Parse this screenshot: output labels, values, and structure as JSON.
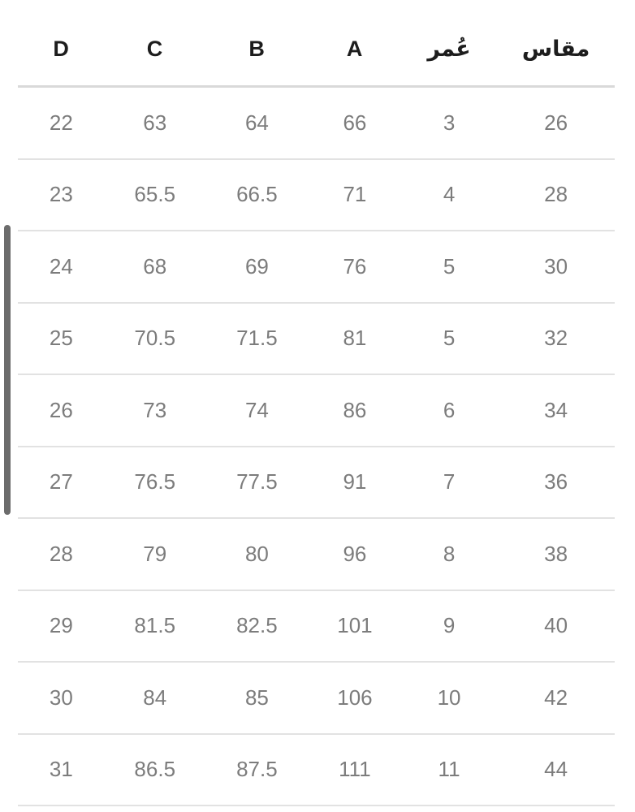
{
  "table": {
    "columns": [
      {
        "key": "size",
        "label": "مقاس"
      },
      {
        "key": "age",
        "label": "عُمر"
      },
      {
        "key": "a",
        "label": "A"
      },
      {
        "key": "b",
        "label": "B"
      },
      {
        "key": "c",
        "label": "C"
      },
      {
        "key": "d",
        "label": "D"
      }
    ],
    "rows": [
      [
        "26",
        "3",
        "66",
        "64",
        "63",
        "22"
      ],
      [
        "28",
        "4",
        "71",
        "66.5",
        "65.5",
        "23"
      ],
      [
        "30",
        "5",
        "76",
        "69",
        "68",
        "24"
      ],
      [
        "32",
        "5",
        "81",
        "71.5",
        "70.5",
        "25"
      ],
      [
        "34",
        "6",
        "86",
        "74",
        "73",
        "26"
      ],
      [
        "36",
        "7",
        "91",
        "77.5",
        "76.5",
        "27"
      ],
      [
        "38",
        "8",
        "96",
        "80",
        "79",
        "28"
      ],
      [
        "40",
        "9",
        "101",
        "82.5",
        "81.5",
        "29"
      ],
      [
        "42",
        "10",
        "106",
        "85",
        "84",
        "30"
      ],
      [
        "44",
        "11",
        "111",
        "87.5",
        "86.5",
        "31"
      ]
    ]
  },
  "colors": {
    "header_text": "#1d1d1d",
    "cell_text": "#7c7c7c",
    "divider": "#e2e2e2",
    "header_divider": "#d9d9d9",
    "scrollbar_thumb": "#6c6c6c",
    "background": "#ffffff"
  }
}
